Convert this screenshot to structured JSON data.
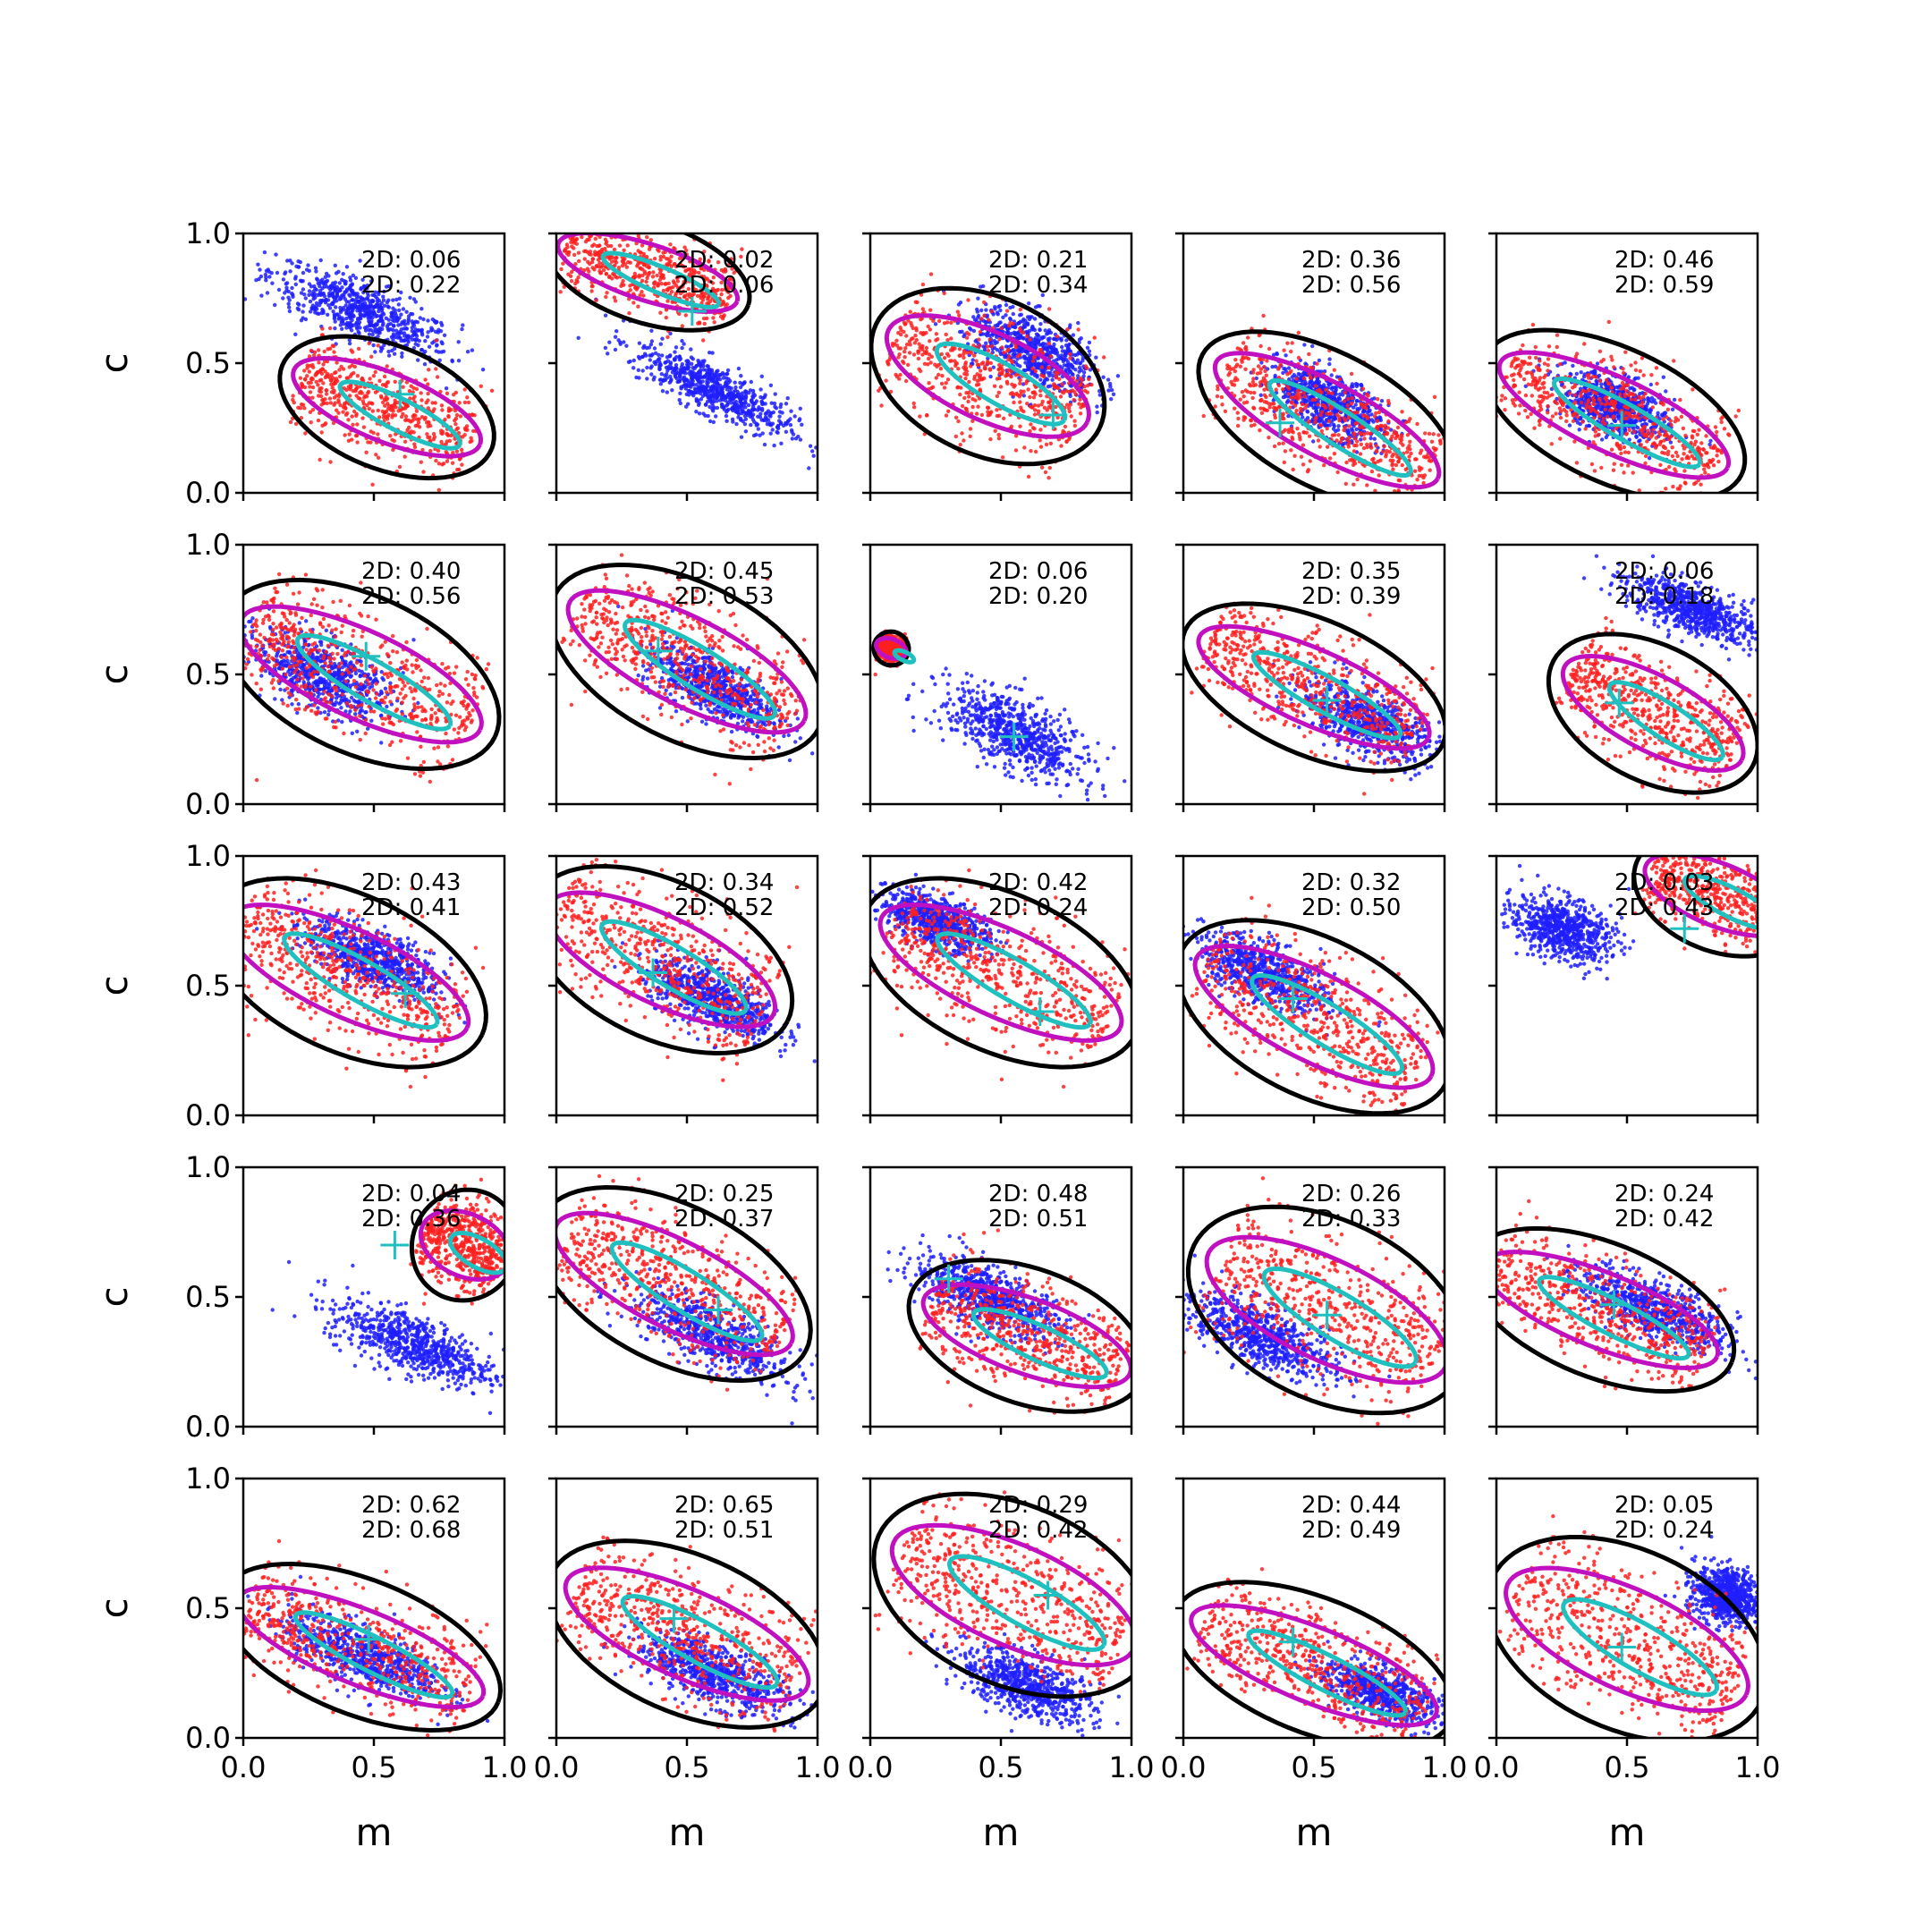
{
  "chart_data": {
    "type": "scatter",
    "layout": "5x5 grid of panels",
    "xlabel": "m",
    "ylabel": "c",
    "xlim": [
      0.0,
      1.0
    ],
    "ylim": [
      0.0,
      1.0
    ],
    "xticks": [
      "0.0",
      "0.5",
      "1.0"
    ],
    "yticks": [
      "0.0",
      "0.5",
      "1.0"
    ],
    "colors": {
      "blue_points": "#1f1fff",
      "red_points": "#ff2020",
      "black_contour": "#000000",
      "magenta_contour": "#c010c0",
      "cyan_contour": "#20c0c0",
      "cyan_marker": "#20c0c0"
    },
    "panels": [
      {
        "ann": [
          "2D: 0.06",
          "2D: 0.22"
        ],
        "blue": {
          "cx": 0.45,
          "cy": 0.7,
          "angle": -24,
          "sx": 0.34,
          "sy": 0.06
        },
        "red": {
          "cx": 0.55,
          "cy": 0.33,
          "angle": -22,
          "sx": 0.32,
          "sy": 0.11
        },
        "marker": [
          0.6,
          0.38
        ]
      },
      {
        "ann": [
          "2D: 0.02",
          "2D: 0.06"
        ],
        "blue": {
          "cx": 0.6,
          "cy": 0.4,
          "angle": -28,
          "sx": 0.3,
          "sy": 0.05
        },
        "red": {
          "cx": 0.35,
          "cy": 0.85,
          "angle": -18,
          "sx": 0.3,
          "sy": 0.09
        },
        "marker": [
          0.52,
          0.7
        ]
      },
      {
        "ann": [
          "2D: 0.21",
          "2D: 0.34"
        ],
        "blue": {
          "cx": 0.62,
          "cy": 0.55,
          "angle": -26,
          "sx": 0.25,
          "sy": 0.07
        },
        "red": {
          "cx": 0.45,
          "cy": 0.45,
          "angle": -25,
          "sx": 0.35,
          "sy": 0.14
        },
        "marker": [
          0.7,
          0.3
        ]
      },
      {
        "ann": [
          "2D: 0.36",
          "2D: 0.56"
        ],
        "blue": {
          "cx": 0.55,
          "cy": 0.35,
          "angle": -28,
          "sx": 0.22,
          "sy": 0.06
        },
        "red": {
          "cx": 0.55,
          "cy": 0.28,
          "angle": -28,
          "sx": 0.4,
          "sy": 0.12
        },
        "marker": [
          0.37,
          0.27
        ]
      },
      {
        "ann": [
          "2D: 0.46",
          "2D: 0.59"
        ],
        "blue": {
          "cx": 0.45,
          "cy": 0.33,
          "angle": -22,
          "sx": 0.2,
          "sy": 0.06
        },
        "red": {
          "cx": 0.45,
          "cy": 0.3,
          "angle": -25,
          "sx": 0.4,
          "sy": 0.12
        },
        "marker": [
          0.48,
          0.26
        ]
      },
      {
        "ann": [
          "2D: 0.40",
          "2D: 0.56"
        ],
        "blue": {
          "cx": 0.3,
          "cy": 0.5,
          "angle": -25,
          "sx": 0.25,
          "sy": 0.07
        },
        "red": {
          "cx": 0.45,
          "cy": 0.5,
          "angle": -25,
          "sx": 0.42,
          "sy": 0.14
        },
        "marker": [
          0.47,
          0.57
        ]
      },
      {
        "ann": [
          "2D: 0.45",
          "2D: 0.53"
        ],
        "blue": {
          "cx": 0.6,
          "cy": 0.45,
          "angle": -27,
          "sx": 0.25,
          "sy": 0.06
        },
        "red": {
          "cx": 0.5,
          "cy": 0.55,
          "angle": -27,
          "sx": 0.42,
          "sy": 0.14
        },
        "marker": [
          0.39,
          0.59
        ]
      },
      {
        "ann": [
          "2D: 0.06",
          "2D: 0.20"
        ],
        "blue": {
          "cx": 0.55,
          "cy": 0.27,
          "angle": -28,
          "sx": 0.28,
          "sy": 0.07
        },
        "red": {
          "cx": 0.08,
          "cy": 0.6,
          "angle": -20,
          "sx": 0.05,
          "sy": 0.03
        },
        "marker": [
          0.55,
          0.26
        ]
      },
      {
        "ann": [
          "2D: 0.35",
          "2D: 0.39"
        ],
        "blue": {
          "cx": 0.7,
          "cy": 0.32,
          "angle": -25,
          "sx": 0.25,
          "sy": 0.06
        },
        "red": {
          "cx": 0.5,
          "cy": 0.45,
          "angle": -24,
          "sx": 0.4,
          "sy": 0.12
        },
        "marker": [
          0.55,
          0.4
        ]
      },
      {
        "ann": [
          "2D: 0.06",
          "2D: 0.18"
        ],
        "blue": {
          "cx": 0.75,
          "cy": 0.75,
          "angle": -22,
          "sx": 0.25,
          "sy": 0.05
        },
        "red": {
          "cx": 0.6,
          "cy": 0.35,
          "angle": -28,
          "sx": 0.32,
          "sy": 0.12
        },
        "marker": [
          0.47,
          0.39
        ]
      },
      {
        "ann": [
          "2D: 0.43",
          "2D: 0.41"
        ],
        "blue": {
          "cx": 0.5,
          "cy": 0.6,
          "angle": -25,
          "sx": 0.25,
          "sy": 0.06
        },
        "red": {
          "cx": 0.4,
          "cy": 0.55,
          "angle": -25,
          "sx": 0.42,
          "sy": 0.14
        },
        "marker": [
          0.62,
          0.47
        ]
      },
      {
        "ann": [
          "2D: 0.34",
          "2D: 0.52"
        ],
        "blue": {
          "cx": 0.6,
          "cy": 0.45,
          "angle": -25,
          "sx": 0.25,
          "sy": 0.06
        },
        "red": {
          "cx": 0.4,
          "cy": 0.6,
          "angle": -26,
          "sx": 0.4,
          "sy": 0.14
        },
        "marker": [
          0.37,
          0.55
        ]
      },
      {
        "ann": [
          "2D: 0.42",
          "2D: 0.24"
        ],
        "blue": {
          "cx": 0.25,
          "cy": 0.75,
          "angle": -22,
          "sx": 0.2,
          "sy": 0.05
        },
        "red": {
          "cx": 0.5,
          "cy": 0.55,
          "angle": -25,
          "sx": 0.42,
          "sy": 0.14
        },
        "marker": [
          0.65,
          0.4
        ]
      },
      {
        "ann": [
          "2D: 0.32",
          "2D: 0.50"
        ],
        "blue": {
          "cx": 0.3,
          "cy": 0.55,
          "angle": -25,
          "sx": 0.25,
          "sy": 0.06
        },
        "red": {
          "cx": 0.5,
          "cy": 0.38,
          "angle": -27,
          "sx": 0.42,
          "sy": 0.14
        },
        "marker": [
          0.42,
          0.45
        ]
      },
      {
        "ann": [
          "2D: 0.03",
          "2D: 0.43"
        ],
        "blue": {
          "cx": 0.25,
          "cy": 0.72,
          "angle": -20,
          "sx": 0.18,
          "sy": 0.06
        },
        "red": {
          "cx": 0.85,
          "cy": 0.85,
          "angle": -22,
          "sx": 0.25,
          "sy": 0.1
        },
        "marker": [
          0.72,
          0.72
        ]
      },
      {
        "ann": [
          "2D: 0.04",
          "2D: 0.36"
        ],
        "blue": {
          "cx": 0.65,
          "cy": 0.32,
          "angle": -22,
          "sx": 0.3,
          "sy": 0.06
        },
        "red": {
          "cx": 0.85,
          "cy": 0.7,
          "angle": -25,
          "sx": 0.15,
          "sy": 0.1
        },
        "marker": [
          0.58,
          0.7
        ]
      },
      {
        "ann": [
          "2D: 0.25",
          "2D: 0.37"
        ],
        "blue": {
          "cx": 0.6,
          "cy": 0.35,
          "angle": -27,
          "sx": 0.3,
          "sy": 0.06
        },
        "red": {
          "cx": 0.45,
          "cy": 0.55,
          "angle": -27,
          "sx": 0.42,
          "sy": 0.14
        },
        "marker": [
          0.62,
          0.45
        ]
      },
      {
        "ann": [
          "2D: 0.48",
          "2D: 0.51"
        ],
        "blue": {
          "cx": 0.45,
          "cy": 0.5,
          "angle": -24,
          "sx": 0.28,
          "sy": 0.06
        },
        "red": {
          "cx": 0.6,
          "cy": 0.35,
          "angle": -20,
          "sx": 0.35,
          "sy": 0.12
        },
        "marker": [
          0.3,
          0.57
        ]
      },
      {
        "ann": [
          "2D: 0.26",
          "2D: 0.33"
        ],
        "blue": {
          "cx": 0.3,
          "cy": 0.35,
          "angle": -25,
          "sx": 0.28,
          "sy": 0.06
        },
        "red": {
          "cx": 0.55,
          "cy": 0.45,
          "angle": -26,
          "sx": 0.42,
          "sy": 0.16
        },
        "marker": [
          0.55,
          0.43
        ]
      },
      {
        "ann": [
          "2D: 0.24",
          "2D: 0.42"
        ],
        "blue": {
          "cx": 0.6,
          "cy": 0.45,
          "angle": -25,
          "sx": 0.28,
          "sy": 0.06
        },
        "red": {
          "cx": 0.4,
          "cy": 0.45,
          "angle": -22,
          "sx": 0.4,
          "sy": 0.12
        },
        "marker": [
          0.45,
          0.47
        ]
      },
      {
        "ann": [
          "2D: 0.62",
          "2D: 0.68"
        ],
        "blue": {
          "cx": 0.45,
          "cy": 0.32,
          "angle": -22,
          "sx": 0.3,
          "sy": 0.06
        },
        "red": {
          "cx": 0.45,
          "cy": 0.35,
          "angle": -22,
          "sx": 0.42,
          "sy": 0.12
        },
        "marker": [
          0.48,
          0.38
        ]
      },
      {
        "ann": [
          "2D: 0.65",
          "2D: 0.51"
        ],
        "blue": {
          "cx": 0.6,
          "cy": 0.25,
          "angle": -22,
          "sx": 0.28,
          "sy": 0.06
        },
        "red": {
          "cx": 0.5,
          "cy": 0.4,
          "angle": -24,
          "sx": 0.42,
          "sy": 0.14
        },
        "marker": [
          0.45,
          0.46
        ]
      },
      {
        "ann": [
          "2D: 0.29",
          "2D: 0.42"
        ],
        "blue": {
          "cx": 0.6,
          "cy": 0.2,
          "angle": -22,
          "sx": 0.25,
          "sy": 0.06
        },
        "red": {
          "cx": 0.55,
          "cy": 0.55,
          "angle": -24,
          "sx": 0.42,
          "sy": 0.16
        },
        "marker": [
          0.68,
          0.55
        ]
      },
      {
        "ann": [
          "2D: 0.44",
          "2D: 0.49"
        ],
        "blue": {
          "cx": 0.75,
          "cy": 0.18,
          "angle": -22,
          "sx": 0.22,
          "sy": 0.05
        },
        "red": {
          "cx": 0.5,
          "cy": 0.28,
          "angle": -22,
          "sx": 0.42,
          "sy": 0.12
        },
        "marker": [
          0.42,
          0.37
        ]
      },
      {
        "ann": [
          "2D: 0.05",
          "2D: 0.24"
        ],
        "blue": {
          "cx": 0.88,
          "cy": 0.55,
          "angle": -20,
          "sx": 0.12,
          "sy": 0.06
        },
        "red": {
          "cx": 0.5,
          "cy": 0.38,
          "angle": -25,
          "sx": 0.42,
          "sy": 0.16
        },
        "marker": [
          0.48,
          0.35
        ]
      }
    ]
  }
}
